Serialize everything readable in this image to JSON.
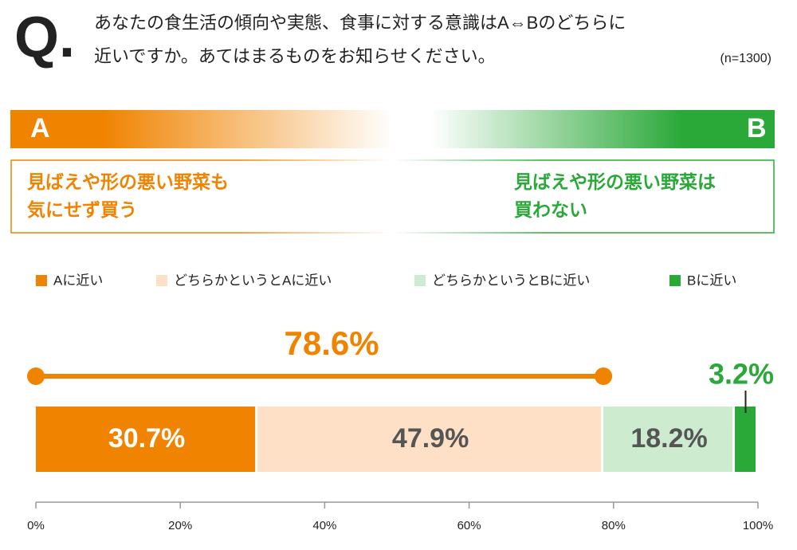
{
  "question_mark": "Q.",
  "question_lines": [
    "あなたの食生活の傾向や実態、食事に対する意識はA⇔Bのどちらに",
    "近いですか。あてはまるものをお知らせください。"
  ],
  "sample": "(n=1300)",
  "scale": {
    "a_label": "A",
    "b_label": "B",
    "a_statement": [
      "見ばえや形の悪い野菜も",
      "気にせず買う"
    ],
    "b_statement": [
      "見ばえや形の悪い野菜は",
      "買わない"
    ],
    "a_color": "#f08300",
    "b_color": "#2aa838"
  },
  "chart_data": {
    "type": "stacked_hbar",
    "series": [
      {
        "name": "Aに近い",
        "color": "#f08300",
        "label_color": "#ffffff",
        "values": [
          30.7
        ],
        "value_labels": [
          "30.7%"
        ]
      },
      {
        "name": "どちらかというとAに近い",
        "color": "#fde0c6",
        "label_color": "#555555",
        "values": [
          47.9
        ],
        "value_labels": [
          "47.9%"
        ]
      },
      {
        "name": "どちらかというとBに近い",
        "color": "#cdeccf",
        "label_color": "#555555",
        "values": [
          18.2
        ],
        "value_labels": [
          "18.2%"
        ]
      },
      {
        "name": "Bに近い",
        "color": "#2aa838",
        "label_color": "#2aa838",
        "values": [
          3.2
        ],
        "value_labels": [
          "3.2%"
        ]
      }
    ],
    "summary": {
      "value": 78.6,
      "label": "78.6%",
      "color": "#f08300"
    },
    "xlim": [
      0,
      100
    ],
    "xticks": [
      {
        "value": 0,
        "label": "0%"
      },
      {
        "value": 20,
        "label": "20%"
      },
      {
        "value": 40,
        "label": "40%"
      },
      {
        "value": 60,
        "label": "60%"
      },
      {
        "value": 80,
        "label": "80%"
      },
      {
        "value": 100,
        "label": "100%"
      }
    ]
  }
}
